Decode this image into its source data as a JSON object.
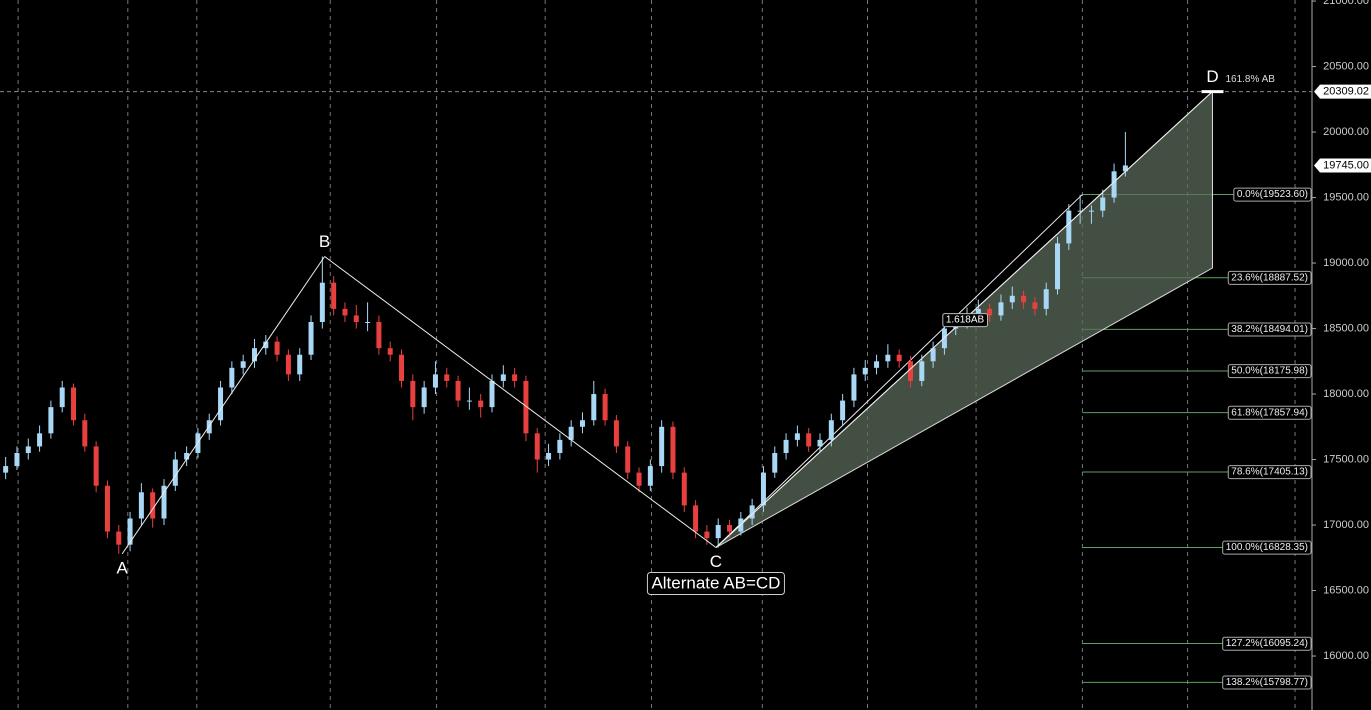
{
  "chart_data": {
    "type": "candlestick",
    "up_color": "#a8d8f5",
    "down_color": "#e8403f",
    "grid": true,
    "xlim": [
      -0.5,
      115.5
    ],
    "xticks": [
      1.1,
      10.8,
      16.9,
      28.7,
      38.1,
      47.7,
      57.1,
      66.9,
      76.2,
      85.8,
      95.2,
      104.5,
      114
    ],
    "ylim": [
      15588,
      21008
    ],
    "yticks": [
      {
        "value": 16000,
        "label": "16000.00"
      },
      {
        "value": 16500,
        "label": "16500.00"
      },
      {
        "value": 17000,
        "label": "17000.00"
      },
      {
        "value": 17500,
        "label": "17500.00"
      },
      {
        "value": 18000,
        "label": "18000.00"
      },
      {
        "value": 18500,
        "label": "18500.00"
      },
      {
        "value": 19000,
        "label": "19000.00"
      },
      {
        "value": 19500,
        "label": "19500.00"
      },
      {
        "value": 20000,
        "label": "20000.00"
      },
      {
        "value": 20500,
        "label": "20500.00"
      },
      {
        "value": 21000,
        "label": "21000.00"
      }
    ],
    "x": [
      0,
      1,
      2,
      3,
      4,
      5,
      6,
      7,
      8,
      9,
      10,
      11,
      12,
      13,
      14,
      15,
      16,
      17,
      18,
      19,
      20,
      21,
      22,
      23,
      24,
      25,
      26,
      27,
      28,
      29,
      30,
      31,
      32,
      33,
      34,
      35,
      36,
      37,
      38,
      39,
      40,
      41,
      42,
      43,
      44,
      45,
      46,
      47,
      48,
      49,
      50,
      51,
      52,
      53,
      54,
      55,
      56,
      57,
      58,
      59,
      60,
      61,
      62,
      63,
      64,
      65,
      66,
      67,
      68,
      69,
      70,
      71,
      72,
      73,
      74,
      75,
      76,
      77,
      78,
      79,
      80,
      81,
      82,
      83,
      84,
      85,
      86,
      87,
      88,
      89,
      90,
      91,
      92,
      93,
      94,
      95,
      96,
      97,
      98,
      99
    ],
    "ohlc": [
      [
        17400,
        17520,
        17350,
        17450
      ],
      [
        17450,
        17600,
        17420,
        17550
      ],
      [
        17550,
        17660,
        17500,
        17600
      ],
      [
        17600,
        17760,
        17560,
        17700
      ],
      [
        17700,
        17950,
        17660,
        17900
      ],
      [
        17900,
        18100,
        17860,
        18050
      ],
      [
        18050,
        18080,
        17760,
        17800
      ],
      [
        17800,
        17850,
        17560,
        17600
      ],
      [
        17600,
        17640,
        17250,
        17300
      ],
      [
        17300,
        17340,
        16900,
        16950
      ],
      [
        16950,
        17000,
        16780,
        16850
      ],
      [
        16850,
        17100,
        16800,
        17050
      ],
      [
        17050,
        17320,
        17000,
        17250
      ],
      [
        17250,
        17280,
        16980,
        17050
      ],
      [
        17050,
        17350,
        17000,
        17300
      ],
      [
        17300,
        17560,
        17260,
        17500
      ],
      [
        17500,
        17600,
        17450,
        17550
      ],
      [
        17550,
        17740,
        17510,
        17700
      ],
      [
        17700,
        17850,
        17650,
        17800
      ],
      [
        17800,
        18100,
        17760,
        18050
      ],
      [
        18050,
        18250,
        18000,
        18200
      ],
      [
        18200,
        18300,
        18150,
        18250
      ],
      [
        18250,
        18420,
        18200,
        18350
      ],
      [
        18350,
        18450,
        18300,
        18400
      ],
      [
        18400,
        18440,
        18250,
        18300
      ],
      [
        18300,
        18340,
        18100,
        18150
      ],
      [
        18150,
        18350,
        18100,
        18300
      ],
      [
        18300,
        18600,
        18260,
        18550
      ],
      [
        18550,
        19050,
        18500,
        18850
      ],
      [
        18850,
        18900,
        18600,
        18650
      ],
      [
        18650,
        18700,
        18550,
        18600
      ],
      [
        18600,
        18680,
        18500,
        18550
      ],
      [
        18550,
        18700,
        18480,
        18550
      ],
      [
        18550,
        18600,
        18300,
        18350
      ],
      [
        18350,
        18400,
        18250,
        18300
      ],
      [
        18300,
        18340,
        18050,
        18100
      ],
      [
        18100,
        18150,
        17800,
        17900
      ],
      [
        17900,
        18100,
        17850,
        18050
      ],
      [
        18050,
        18250,
        18000,
        18150
      ],
      [
        18150,
        18200,
        18050,
        18100
      ],
      [
        18100,
        18140,
        17900,
        17950
      ],
      [
        17950,
        18050,
        17880,
        17950
      ],
      [
        17950,
        18000,
        17820,
        17900
      ],
      [
        17900,
        18150,
        17860,
        18100
      ],
      [
        18100,
        18220,
        18050,
        18150
      ],
      [
        18150,
        18200,
        18050,
        18100
      ],
      [
        18100,
        18140,
        17640,
        17700
      ],
      [
        17700,
        17740,
        17400,
        17500
      ],
      [
        17500,
        17620,
        17450,
        17550
      ],
      [
        17550,
        17700,
        17500,
        17650
      ],
      [
        17650,
        17800,
        17600,
        17750
      ],
      [
        17750,
        17860,
        17700,
        17800
      ],
      [
        17800,
        18100,
        17760,
        18000
      ],
      [
        18000,
        18040,
        17760,
        17800
      ],
      [
        17800,
        17840,
        17550,
        17600
      ],
      [
        17600,
        17640,
        17350,
        17400
      ],
      [
        17400,
        17440,
        17250,
        17300
      ],
      [
        17300,
        17500,
        17260,
        17450
      ],
      [
        17450,
        17800,
        17400,
        17750
      ],
      [
        17750,
        17790,
        17350,
        17400
      ],
      [
        17400,
        17440,
        17100,
        17150
      ],
      [
        17150,
        17190,
        16900,
        16950
      ],
      [
        16950,
        17000,
        16850,
        16900
      ],
      [
        16900,
        17050,
        16828,
        17000
      ],
      [
        17000,
        17040,
        16900,
        16950
      ],
      [
        16950,
        17100,
        16920,
        17050
      ],
      [
        17050,
        17200,
        17000,
        17150
      ],
      [
        17150,
        17450,
        17100,
        17400
      ],
      [
        17400,
        17600,
        17360,
        17550
      ],
      [
        17550,
        17700,
        17500,
        17650
      ],
      [
        17650,
        17760,
        17600,
        17700
      ],
      [
        17700,
        17740,
        17560,
        17600
      ],
      [
        17600,
        17700,
        17560,
        17650
      ],
      [
        17650,
        17850,
        17600,
        17800
      ],
      [
        17800,
        18000,
        17760,
        17950
      ],
      [
        17950,
        18200,
        17900,
        18150
      ],
      [
        18150,
        18260,
        18100,
        18200
      ],
      [
        18200,
        18300,
        18150,
        18250
      ],
      [
        18250,
        18380,
        18200,
        18300
      ],
      [
        18300,
        18340,
        18200,
        18250
      ],
      [
        18250,
        18290,
        18050,
        18100
      ],
      [
        18100,
        18300,
        18060,
        18250
      ],
      [
        18250,
        18400,
        18200,
        18350
      ],
      [
        18350,
        18560,
        18300,
        18500
      ],
      [
        18500,
        18600,
        18450,
        18550
      ],
      [
        18550,
        18660,
        18500,
        18600
      ],
      [
        18600,
        18720,
        18560,
        18650
      ],
      [
        18650,
        18690,
        18550,
        18600
      ],
      [
        18600,
        18760,
        18560,
        18700
      ],
      [
        18700,
        18820,
        18650,
        18750
      ],
      [
        18750,
        18790,
        18650,
        18700
      ],
      [
        18700,
        18740,
        18600,
        18650
      ],
      [
        18650,
        18850,
        18600,
        18800
      ],
      [
        18800,
        19200,
        18760,
        19150
      ],
      [
        19150,
        19450,
        19100,
        19400
      ],
      [
        19400,
        19520,
        19300,
        19400
      ],
      [
        19400,
        19440,
        19300,
        19400
      ],
      [
        19400,
        19560,
        19350,
        19500
      ],
      [
        19500,
        19760,
        19460,
        19700
      ],
      [
        19700,
        20000,
        19660,
        19745
      ]
    ],
    "pattern": [
      {
        "label": "A",
        "x": 10.3,
        "y": 16780
      },
      {
        "label": "B",
        "x": 28.2,
        "y": 19050
      },
      {
        "label": "C",
        "x": 62.8,
        "y": 16828.35
      },
      {
        "label": "D",
        "x": 106.7,
        "y": 20309.02
      }
    ],
    "projection_lower": 18962,
    "channel_end": {
      "x": 95.2,
      "y": 19523.6
    },
    "d_note": "161.8% AB",
    "ratio_note": "1.618AB",
    "pattern_name": "Alternate AB=CD",
    "fib_start_x": 95.2,
    "fib_levels": [
      {
        "value": 19523.6,
        "label": "0.0%(19523.60)"
      },
      {
        "value": 18887.52,
        "label": "23.6%(18887.52)"
      },
      {
        "value": 18494.01,
        "label": "38.2%(18494.01)"
      },
      {
        "value": 18175.98,
        "label": "50.0%(18175.98)"
      },
      {
        "value": 17857.94,
        "label": "61.8%(17857.94)"
      },
      {
        "value": 17405.13,
        "label": "78.6%(17405.13)"
      },
      {
        "value": 16828.35,
        "label": "100.0%(16828.35)"
      },
      {
        "value": 16095.24,
        "label": "127.2%(16095.24)"
      },
      {
        "value": 15798.77,
        "label": "138.2%(15798.77)"
      }
    ],
    "price_tags": [
      {
        "value": 20309.02,
        "label": "20309.02"
      },
      {
        "value": 19745,
        "label": "19745.00"
      }
    ]
  }
}
